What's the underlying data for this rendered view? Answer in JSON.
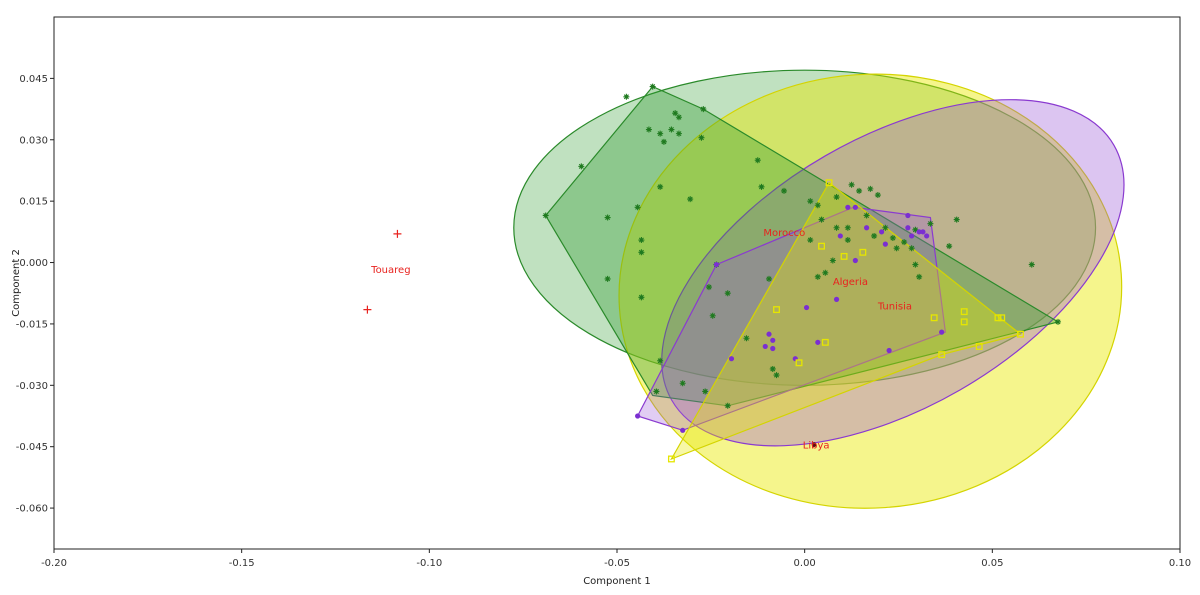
{
  "chart_data": {
    "type": "scatter",
    "title": "",
    "xlabel": "Component 1",
    "ylabel": "Component 2",
    "xlim": [
      -0.2,
      0.1
    ],
    "ylim": [
      -0.07,
      0.06
    ],
    "x_ticks": [
      -0.2,
      -0.15,
      -0.1,
      -0.05,
      0.0,
      0.05,
      0.1
    ],
    "x_tick_labels": [
      "-0.20",
      "-0.15",
      "-0.10",
      "-0.05",
      "0.00",
      "0.05",
      "0.10"
    ],
    "y_ticks": [
      0.045,
      0.03,
      0.015,
      0.0,
      -0.015,
      -0.03,
      -0.045,
      -0.06
    ],
    "y_tick_labels": [
      "0.045",
      "0.030",
      "0.015",
      "0.000",
      "-0.015",
      "-0.030",
      "-0.045",
      "-0.060"
    ],
    "grid": false,
    "colors": {
      "Morocco": "#1f7a1f",
      "Algeria": "#7b2fd1",
      "Tunisia": "#e6e600",
      "Touareg": "#e8231f",
      "Libya": "#5a1010",
      "label_text": "#e8231f"
    },
    "ellipses": [
      {
        "name": "Morocco",
        "cx": 0.0,
        "cy": 0.0085,
        "rx": 0.0775,
        "ry": 0.0385,
        "angle": 0,
        "fill": "#2e9a2e",
        "stroke": "#2a8a2a",
        "opacity": 0.3
      },
      {
        "name": "Tunisia",
        "cx": 0.0175,
        "cy": -0.007,
        "rx": 0.067,
        "ry": 0.053,
        "angle": -4,
        "fill": "#e8e800",
        "stroke": "#d4d400",
        "opacity": 0.45
      },
      {
        "name": "Algeria",
        "cx": 0.0235,
        "cy": -0.0025,
        "rx": 0.068,
        "ry": 0.033,
        "angle": -30,
        "fill": "#9b59d6",
        "stroke": "#8a3ad0",
        "opacity": 0.35
      }
    ],
    "hulls": [
      {
        "name": "Morocco",
        "fill": "#2e9a2e",
        "stroke": "#2a8a2a",
        "opacity": 0.35,
        "points": [
          [
            -0.069,
            0.0115
          ],
          [
            -0.0405,
            0.043
          ],
          [
            -0.027,
            0.0375
          ],
          [
            0.0675,
            -0.0145
          ],
          [
            -0.0205,
            -0.035
          ],
          [
            -0.0405,
            -0.0325
          ]
        ]
      },
      {
        "name": "Algeria",
        "fill": "#9b59d6",
        "stroke": "#8a3ad0",
        "opacity": 0.3,
        "points": [
          [
            -0.0445,
            -0.0375
          ],
          [
            -0.0235,
            -0.0005
          ],
          [
            0.013,
            0.0135
          ],
          [
            0.0335,
            0.011
          ],
          [
            0.0375,
            -0.017
          ],
          [
            -0.0325,
            -0.041
          ]
        ]
      },
      {
        "name": "Tunisia",
        "fill": "#e8e800",
        "stroke": "#d4d400",
        "opacity": 0.35,
        "points": [
          [
            -0.0355,
            -0.048
          ],
          [
            0.0065,
            0.0195
          ],
          [
            0.0575,
            -0.0175
          ],
          [
            0.0365,
            -0.0225
          ]
        ]
      }
    ],
    "series": [
      {
        "name": "Morocco",
        "marker": "star",
        "points": [
          [
            -0.069,
            0.0115
          ],
          [
            -0.0405,
            0.043
          ],
          [
            -0.0475,
            0.0405
          ],
          [
            -0.027,
            0.0375
          ],
          [
            -0.0595,
            0.0235
          ],
          [
            -0.0345,
            0.0365
          ],
          [
            -0.0335,
            0.0355
          ],
          [
            -0.0355,
            0.0325
          ],
          [
            -0.0415,
            0.0325
          ],
          [
            -0.0385,
            0.0315
          ],
          [
            -0.0375,
            0.0295
          ],
          [
            -0.0335,
            0.0315
          ],
          [
            -0.0275,
            0.0305
          ],
          [
            -0.0385,
            0.0185
          ],
          [
            -0.0445,
            0.0135
          ],
          [
            -0.0305,
            0.0155
          ],
          [
            -0.0525,
            0.011
          ],
          [
            -0.0435,
            0.0055
          ],
          [
            -0.0435,
            0.0025
          ],
          [
            -0.0435,
            -0.0085
          ],
          [
            -0.0525,
            -0.004
          ],
          [
            -0.0385,
            -0.024
          ],
          [
            -0.0255,
            -0.006
          ],
          [
            -0.0235,
            -0.0005
          ],
          [
            -0.0205,
            -0.0075
          ],
          [
            -0.0245,
            -0.013
          ],
          [
            -0.0325,
            -0.0295
          ],
          [
            -0.0395,
            -0.0315
          ],
          [
            -0.0265,
            -0.0315
          ],
          [
            -0.0205,
            -0.035
          ],
          [
            -0.0125,
            0.025
          ],
          [
            -0.0115,
            0.0185
          ],
          [
            -0.0055,
            0.0175
          ],
          [
            -0.0095,
            -0.004
          ],
          [
            -0.0085,
            -0.026
          ],
          [
            -0.0155,
            -0.0185
          ],
          [
            -0.0075,
            -0.0275
          ],
          [
            0.0015,
            0.015
          ],
          [
            0.0035,
            0.014
          ],
          [
            0.0085,
            0.016
          ],
          [
            0.0125,
            0.019
          ],
          [
            0.0145,
            0.0175
          ],
          [
            0.0175,
            0.018
          ],
          [
            0.0195,
            0.0165
          ],
          [
            0.0165,
            0.0115
          ],
          [
            0.0215,
            0.0085
          ],
          [
            0.0185,
            0.0065
          ],
          [
            0.0115,
            0.0085
          ],
          [
            0.0085,
            0.0085
          ],
          [
            0.0045,
            0.0105
          ],
          [
            0.0015,
            0.0055
          ],
          [
            0.0115,
            0.0055
          ],
          [
            0.0075,
            0.0005
          ],
          [
            0.0055,
            -0.0025
          ],
          [
            0.0035,
            -0.0035
          ],
          [
            0.0245,
            0.0035
          ],
          [
            0.0285,
            0.0035
          ],
          [
            0.0295,
            0.008
          ],
          [
            0.0295,
            -0.0005
          ],
          [
            0.0305,
            -0.0035
          ],
          [
            0.0265,
            0.005
          ],
          [
            0.0385,
            0.004
          ],
          [
            0.0405,
            0.0105
          ],
          [
            0.0605,
            -0.0005
          ],
          [
            0.0675,
            -0.0145
          ],
          [
            0.0335,
            0.0095
          ],
          [
            0.0235,
            0.006
          ]
        ]
      },
      {
        "name": "Algeria",
        "marker": "circle",
        "points": [
          [
            -0.0445,
            -0.0375
          ],
          [
            -0.0325,
            -0.041
          ],
          [
            -0.0235,
            -0.0005
          ],
          [
            -0.0195,
            -0.0235
          ],
          [
            -0.0095,
            -0.0175
          ],
          [
            -0.0085,
            -0.019
          ],
          [
            -0.0085,
            -0.021
          ],
          [
            -0.0105,
            -0.0205
          ],
          [
            -0.0025,
            -0.0235
          ],
          [
            0.0035,
            -0.0195
          ],
          [
            0.0085,
            -0.009
          ],
          [
            0.0095,
            0.0065
          ],
          [
            0.0135,
            0.0135
          ],
          [
            0.0135,
            0.0005
          ],
          [
            0.0165,
            0.0085
          ],
          [
            0.0205,
            0.0075
          ],
          [
            0.0215,
            0.0045
          ],
          [
            0.0275,
            0.0115
          ],
          [
            0.0275,
            0.0085
          ],
          [
            0.0285,
            0.0065
          ],
          [
            0.0305,
            0.0075
          ],
          [
            0.0315,
            0.0075
          ],
          [
            0.0325,
            0.0065
          ],
          [
            0.0365,
            -0.017
          ],
          [
            0.0225,
            -0.0215
          ],
          [
            0.0115,
            0.0135
          ],
          [
            0.0005,
            -0.011
          ]
        ]
      },
      {
        "name": "Tunisia",
        "marker": "square",
        "points": [
          [
            -0.0355,
            -0.048
          ],
          [
            0.0065,
            0.0195
          ],
          [
            0.0045,
            0.004
          ],
          [
            0.0105,
            0.0015
          ],
          [
            0.0155,
            0.0025
          ],
          [
            -0.0075,
            -0.0115
          ],
          [
            0.0055,
            -0.0195
          ],
          [
            -0.0015,
            -0.0245
          ],
          [
            0.0345,
            -0.0135
          ],
          [
            0.0425,
            -0.012
          ],
          [
            0.0425,
            -0.0145
          ],
          [
            0.0515,
            -0.0135
          ],
          [
            0.0525,
            -0.0135
          ],
          [
            0.0575,
            -0.0175
          ],
          [
            0.0465,
            -0.0205
          ],
          [
            0.0365,
            -0.0225
          ]
        ]
      },
      {
        "name": "Touareg",
        "marker": "plus",
        "points": [
          [
            -0.1085,
            0.007
          ],
          [
            -0.1165,
            -0.0115
          ]
        ]
      },
      {
        "name": "Libya",
        "marker": "dot",
        "points": [
          [
            0.0025,
            -0.0445
          ]
        ]
      }
    ],
    "annotations": [
      {
        "text": "Touareg",
        "x": -0.1155,
        "y": -0.0025
      },
      {
        "text": "Morocco",
        "x": -0.011,
        "y": 0.0065
      },
      {
        "text": "Algeria",
        "x": 0.0075,
        "y": -0.0055
      },
      {
        "text": "Tunisia",
        "x": 0.0195,
        "y": -0.0115
      },
      {
        "text": "Libya",
        "x": -0.0005,
        "y": -0.0455
      }
    ]
  }
}
